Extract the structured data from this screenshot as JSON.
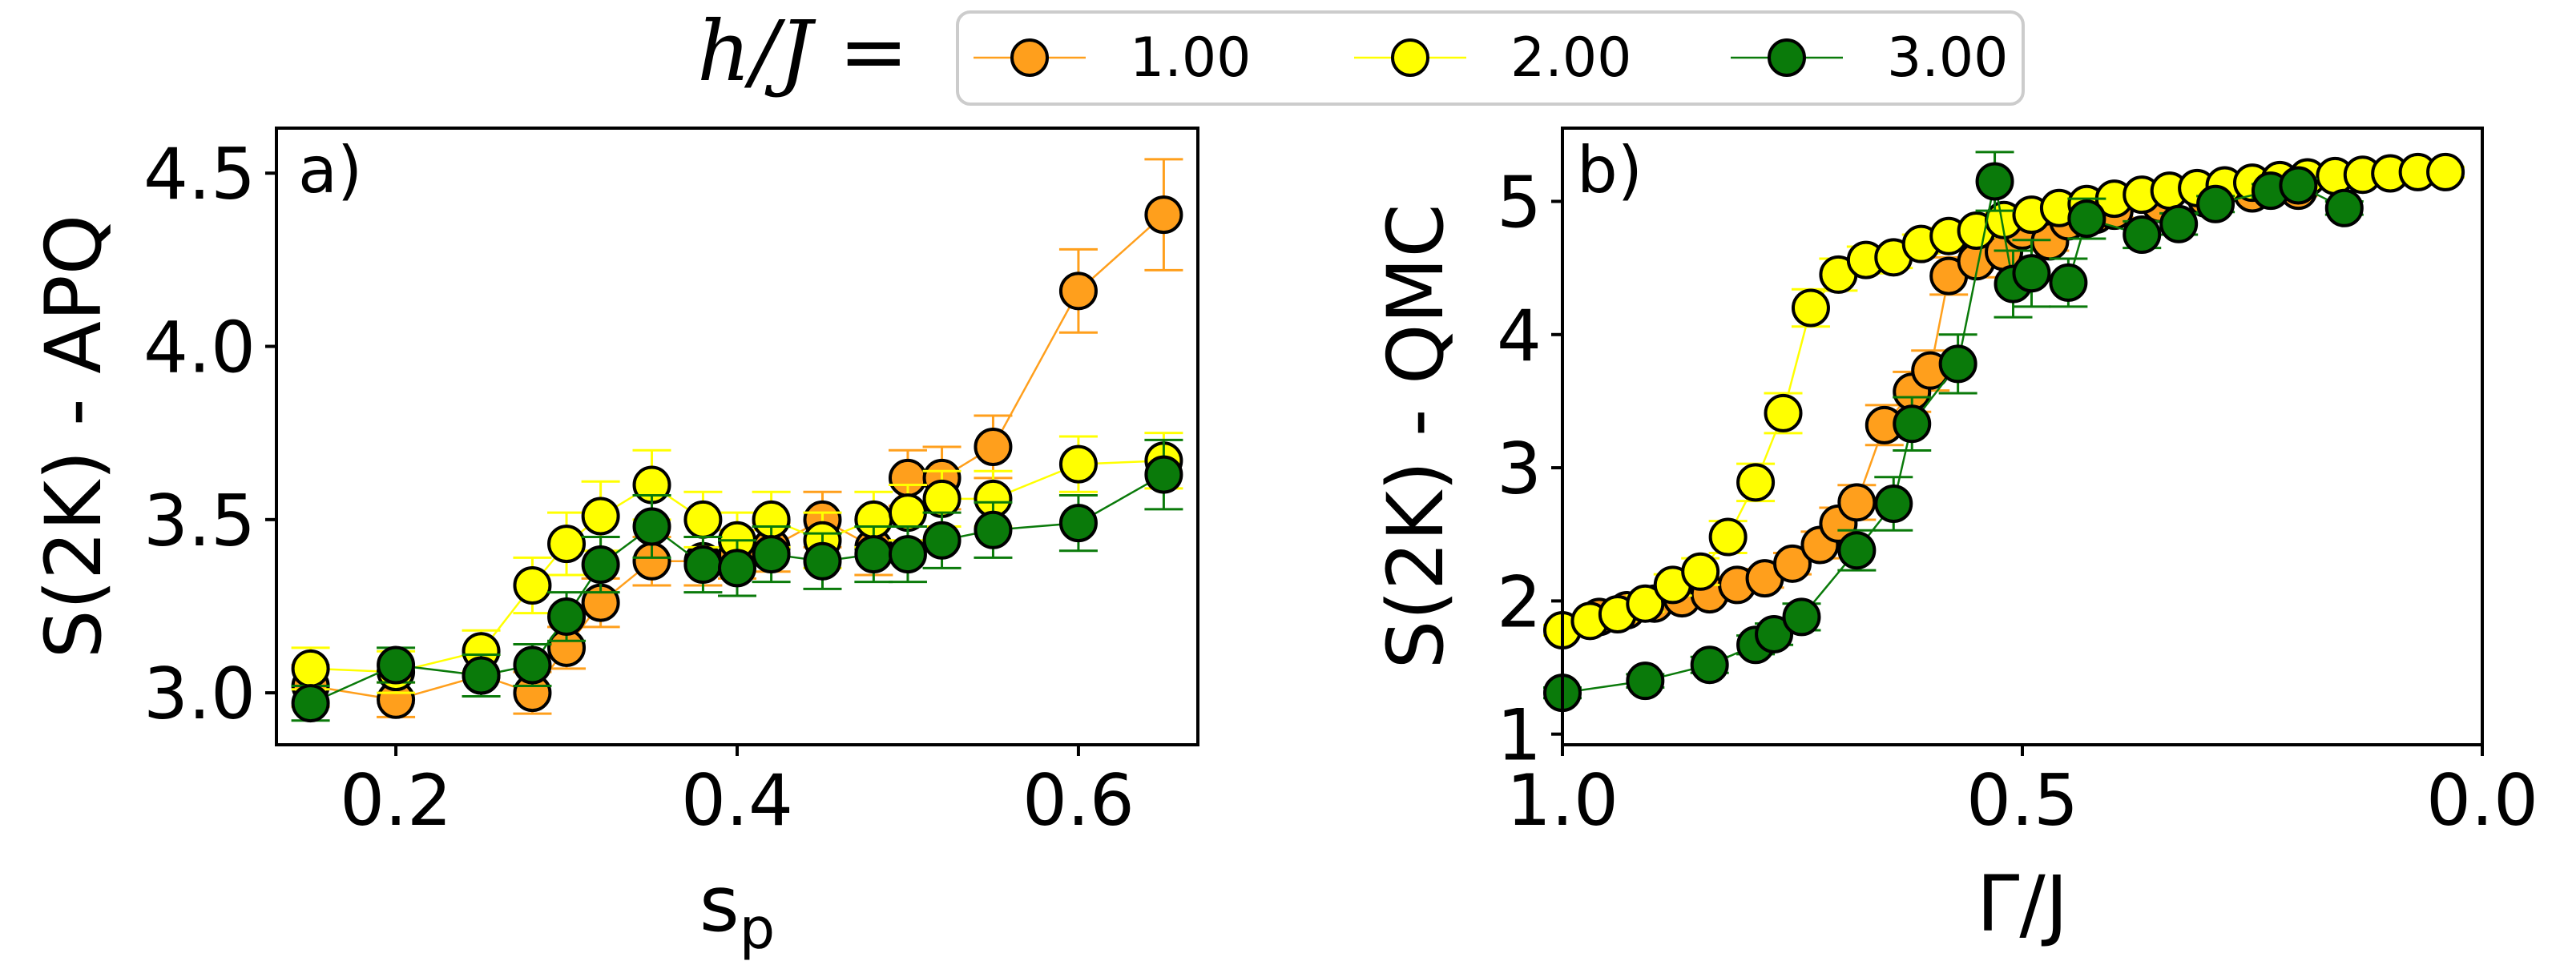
{
  "legend": {
    "title": "h/J =",
    "entries": [
      {
        "label": "1.00",
        "color": "#ff9f1c"
      },
      {
        "label": "2.00",
        "color": "#ffff00"
      },
      {
        "label": "3.00",
        "color": "#0a7a0a"
      }
    ]
  },
  "chart_data": [
    {
      "type": "line",
      "panel": "a)",
      "xlabel": "s_p",
      "ylabel": "S(2K) - APQ",
      "xlim": [
        0.13,
        0.67
      ],
      "ylim": [
        2.85,
        4.63
      ],
      "xticks": [
        0.2,
        0.4,
        0.6
      ],
      "xtick_labels": [
        "0.2",
        "0.4",
        "0.6"
      ],
      "yticks": [
        3.0,
        3.5,
        4.0,
        4.5
      ],
      "ytick_labels": [
        "3.0",
        "3.5",
        "4.0",
        "4.5"
      ],
      "series": [
        {
          "name": "1.00",
          "color": "#ff9f1c",
          "x": [
            0.15,
            0.2,
            0.25,
            0.28,
            0.3,
            0.32,
            0.35,
            0.38,
            0.4,
            0.42,
            0.45,
            0.48,
            0.5,
            0.52,
            0.55,
            0.6,
            0.65
          ],
          "y": [
            3.02,
            2.98,
            3.05,
            3.0,
            3.13,
            3.26,
            3.38,
            3.38,
            3.4,
            3.42,
            3.5,
            3.42,
            3.62,
            3.62,
            3.71,
            4.16,
            4.38
          ],
          "err": [
            0.06,
            0.05,
            0.06,
            0.06,
            0.06,
            0.07,
            0.07,
            0.07,
            0.07,
            0.07,
            0.08,
            0.08,
            0.08,
            0.09,
            0.09,
            0.12,
            0.16
          ]
        },
        {
          "name": "2.00",
          "color": "#ffff00",
          "x": [
            0.15,
            0.2,
            0.25,
            0.28,
            0.3,
            0.32,
            0.35,
            0.38,
            0.4,
            0.42,
            0.45,
            0.48,
            0.5,
            0.52,
            0.55,
            0.6,
            0.65
          ],
          "y": [
            3.07,
            3.06,
            3.12,
            3.31,
            3.43,
            3.51,
            3.6,
            3.5,
            3.44,
            3.5,
            3.44,
            3.5,
            3.52,
            3.56,
            3.56,
            3.66,
            3.67
          ],
          "err": [
            0.06,
            0.06,
            0.06,
            0.08,
            0.09,
            0.1,
            0.1,
            0.08,
            0.08,
            0.08,
            0.08,
            0.08,
            0.08,
            0.08,
            0.08,
            0.08,
            0.08
          ]
        },
        {
          "name": "3.00",
          "color": "#0a7a0a",
          "x": [
            0.15,
            0.2,
            0.25,
            0.28,
            0.3,
            0.32,
            0.35,
            0.38,
            0.4,
            0.42,
            0.45,
            0.48,
            0.5,
            0.52,
            0.55,
            0.6,
            0.65
          ],
          "y": [
            2.97,
            3.08,
            3.05,
            3.08,
            3.22,
            3.37,
            3.48,
            3.37,
            3.36,
            3.4,
            3.38,
            3.4,
            3.4,
            3.44,
            3.47,
            3.49,
            3.63
          ],
          "err": [
            0.05,
            0.05,
            0.06,
            0.06,
            0.07,
            0.08,
            0.09,
            0.08,
            0.08,
            0.08,
            0.08,
            0.08,
            0.08,
            0.08,
            0.08,
            0.08,
            0.1
          ]
        }
      ]
    },
    {
      "type": "line",
      "panel": "b)",
      "xlabel": "Γ/J",
      "ylabel": "S(2K) - QMC",
      "xlim": [
        1.0,
        0.0
      ],
      "ylim": [
        0.92,
        5.55
      ],
      "xticks": [
        1.0,
        0.5,
        0.0
      ],
      "xtick_labels": [
        "1.0",
        "0.5",
        "0.0"
      ],
      "yticks": [
        1,
        2,
        3,
        4,
        5
      ],
      "ytick_labels": [
        "1",
        "2",
        "3",
        "4",
        "5"
      ],
      "series": [
        {
          "name": "1.00",
          "color": "#ff9f1c",
          "x": [
            0.96,
            0.93,
            0.9,
            0.87,
            0.84,
            0.81,
            0.78,
            0.75,
            0.72,
            0.7,
            0.68,
            0.65,
            0.62,
            0.6,
            0.58,
            0.55,
            0.52,
            0.5,
            0.47,
            0.45,
            0.42,
            0.4,
            0.35,
            0.3,
            0.25,
            0.2
          ],
          "y": [
            1.88,
            1.93,
            1.98,
            2.02,
            2.05,
            2.12,
            2.17,
            2.28,
            2.42,
            2.58,
            2.74,
            3.32,
            3.57,
            3.73,
            4.44,
            4.55,
            4.62,
            4.78,
            4.7,
            4.85,
            4.9,
            4.93,
            4.98,
            5.02,
            5.06,
            5.08
          ],
          "err": [
            0.04,
            0.04,
            0.04,
            0.04,
            0.05,
            0.06,
            0.07,
            0.08,
            0.1,
            0.12,
            0.13,
            0.15,
            0.15,
            0.15,
            0.14,
            0.12,
            0.1,
            0.08,
            0.07,
            0.06,
            0.05,
            0.05,
            0.04,
            0.04,
            0.04,
            0.04
          ]
        },
        {
          "name": "2.00",
          "color": "#ffff00",
          "x": [
            1.0,
            0.97,
            0.94,
            0.91,
            0.88,
            0.85,
            0.82,
            0.79,
            0.76,
            0.73,
            0.7,
            0.67,
            0.64,
            0.61,
            0.58,
            0.55,
            0.52,
            0.49,
            0.46,
            0.43,
            0.4,
            0.37,
            0.34,
            0.31,
            0.28,
            0.25,
            0.22,
            0.19,
            0.16,
            0.13,
            0.1,
            0.07,
            0.04
          ],
          "y": [
            1.78,
            1.85,
            1.9,
            1.98,
            2.12,
            2.22,
            2.48,
            2.89,
            3.41,
            4.2,
            4.45,
            4.56,
            4.58,
            4.68,
            4.74,
            4.78,
            4.86,
            4.9,
            4.95,
            4.98,
            5.02,
            5.05,
            5.08,
            5.1,
            5.12,
            5.14,
            5.16,
            5.18,
            5.19,
            5.2,
            5.21,
            5.22,
            5.22
          ],
          "err": [
            0.04,
            0.04,
            0.05,
            0.06,
            0.08,
            0.1,
            0.12,
            0.14,
            0.15,
            0.14,
            0.12,
            0.1,
            0.08,
            0.07,
            0.06,
            0.05,
            0.05,
            0.04,
            0.04,
            0.04,
            0.04,
            0.04,
            0.04,
            0.04,
            0.04,
            0.04,
            0.04,
            0.04,
            0.04,
            0.04,
            0.04,
            0.04,
            0.04
          ]
        },
        {
          "name": "3.00",
          "color": "#0a7a0a",
          "x": [
            1.0,
            0.91,
            0.84,
            0.79,
            0.77,
            0.74,
            0.68,
            0.64,
            0.62,
            0.57,
            0.53,
            0.51,
            0.49,
            0.45,
            0.43,
            0.37,
            0.33,
            0.29,
            0.23,
            0.2,
            0.15
          ],
          "y": [
            1.31,
            1.4,
            1.52,
            1.67,
            1.75,
            1.88,
            2.38,
            2.73,
            3.33,
            3.78,
            5.15,
            4.38,
            4.46,
            4.39,
            4.87,
            4.75,
            4.83,
            4.98,
            5.08,
            5.12,
            4.95
          ],
          "err": [
            0.04,
            0.05,
            0.06,
            0.07,
            0.08,
            0.1,
            0.15,
            0.2,
            0.2,
            0.22,
            0.22,
            0.25,
            0.25,
            0.18,
            0.15,
            0.1,
            0.08,
            0.06,
            0.05,
            0.05,
            0.05
          ]
        }
      ]
    }
  ]
}
